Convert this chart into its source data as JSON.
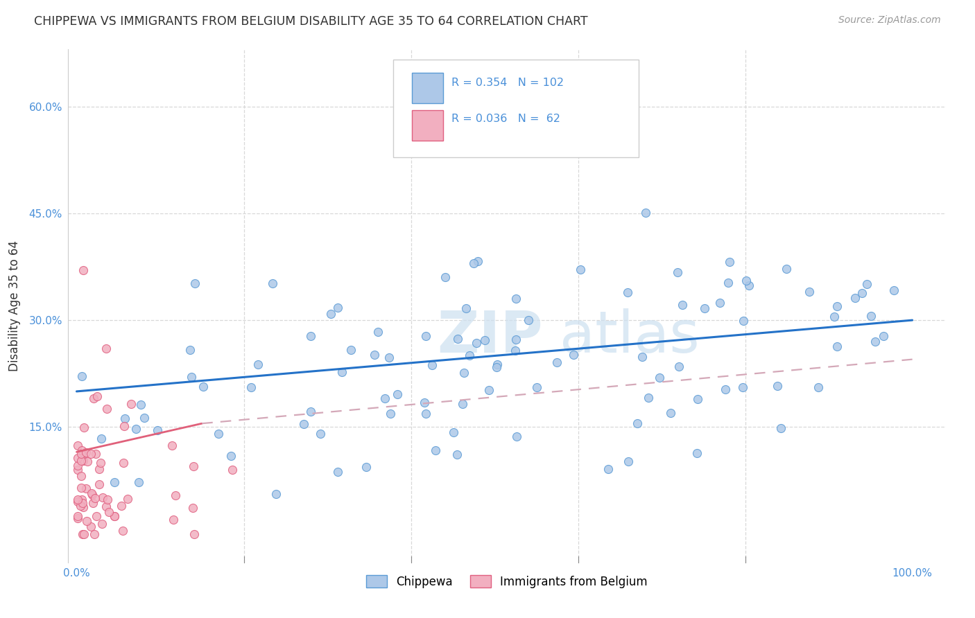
{
  "title": "CHIPPEWA VS IMMIGRANTS FROM BELGIUM DISABILITY AGE 35 TO 64 CORRELATION CHART",
  "source": "Source: ZipAtlas.com",
  "ylabel": "Disability Age 35 to 64",
  "xlim": [
    -0.01,
    1.04
  ],
  "ylim": [
    -0.04,
    0.68
  ],
  "yticks": [
    0.15,
    0.3,
    0.45,
    0.6
  ],
  "yticklabels": [
    "15.0%",
    "30.0%",
    "45.0%",
    "60.0%"
  ],
  "xticks": [
    0.0,
    0.2,
    0.4,
    0.6,
    0.8,
    1.0
  ],
  "xticklabels": [
    "0.0%",
    "",
    "",
    "",
    "",
    "100.0%"
  ],
  "legend_r1": "0.354",
  "legend_n1": "102",
  "legend_r2": "0.036",
  "legend_n2": " 62",
  "color_blue": "#adc8e8",
  "color_pink": "#f2afc0",
  "edge_blue": "#5b9bd5",
  "edge_pink": "#e06080",
  "line_blue": "#2472c8",
  "line_pink_solid": "#e0607a",
  "line_pink_dash": "#d4a8b8",
  "watermark_color": "#cde0f0",
  "grid_color": "#d8d8d8",
  "tick_color": "#4a90d9",
  "title_color": "#333333",
  "source_color": "#999999",
  "ylabel_color": "#333333"
}
